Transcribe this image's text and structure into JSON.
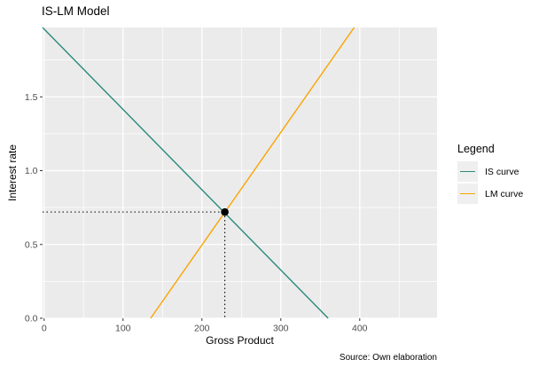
{
  "caption": {
    "text": "Source: Own elaboration"
  },
  "legend": {
    "title": "Legend",
    "position": "right",
    "entries": [
      {
        "label": "IS curve",
        "color": "#2b897b"
      },
      {
        "label": "LM curve",
        "color": "#f9a401"
      }
    ]
  },
  "chart_data": {
    "type": "line",
    "title": "IS-LM Model",
    "xlabel": "Gross Product",
    "ylabel": "Interest rate",
    "xlim": [
      -2,
      498
    ],
    "ylim": [
      0,
      1.97
    ],
    "x_tick_values": [
      0,
      100,
      200,
      300,
      400
    ],
    "x_tick_labels": [
      "0",
      "100",
      "200",
      "300",
      "400"
    ],
    "y_tick_values": [
      0,
      0.5,
      1,
      1.5
    ],
    "y_tick_labels": [
      "0.0",
      "0.5",
      "1.0",
      "1.5"
    ],
    "x_minor_ticks": [
      50,
      150,
      250,
      350,
      450
    ],
    "y_minor_ticks": [
      0.25,
      0.75,
      1.25,
      1.75
    ],
    "grid": "major and minor white gridlines on gray panel",
    "legend_position": "right",
    "panel_bg": "#ebebeb",
    "grid_color": "#ffffff",
    "tick_label_color": "#4d4d4d",
    "tick_mark_color": "#333333",
    "series": [
      {
        "name": "IS curve",
        "color": "#2b897b",
        "points": [
          [
            -2,
            1.97
          ],
          [
            360,
            0
          ]
        ]
      },
      {
        "name": "LM curve",
        "color": "#f9a401",
        "points": [
          [
            135,
            0
          ],
          [
            393,
            1.97
          ]
        ]
      }
    ],
    "equilibrium": {
      "x": 229,
      "y": 0.72,
      "marker_color": "#000000",
      "guide_style": "dotted lines from point to both axes"
    }
  }
}
